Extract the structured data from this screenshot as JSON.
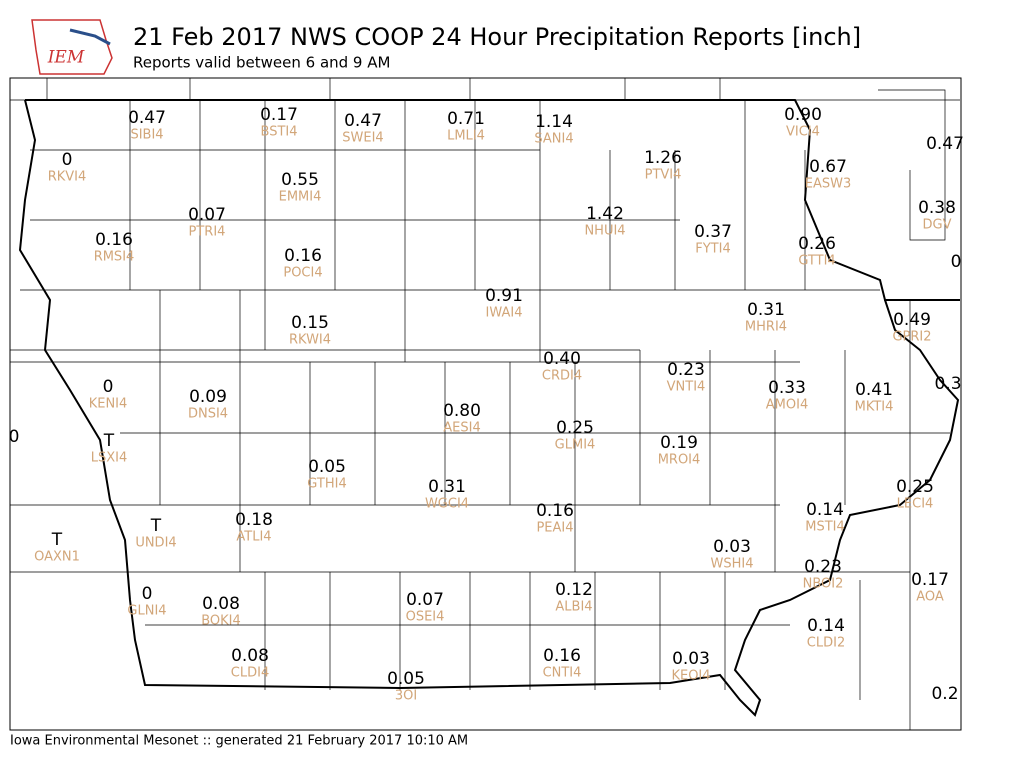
{
  "logo_text": "IEM",
  "title": "21 Feb 2017 NWS COOP 24 Hour Precipitation Reports [inch]",
  "subtitle": "Reports valid between 6 and 9 AM",
  "footer": "Iowa Environmental Mesonet :: generated 21 February 2017 10:10 AM",
  "stations": [
    {
      "value": "0.47",
      "id": "SIBI4"
    },
    {
      "value": "0.17",
      "id": "BSTI4"
    },
    {
      "value": "0.47",
      "id": "SWEI4"
    },
    {
      "value": "0.71",
      "id": "LMLI4"
    },
    {
      "value": "1.14",
      "id": "SANI4"
    },
    {
      "value": "0.90",
      "id": "VICI4"
    },
    {
      "value": "0.47"
    },
    {
      "value": "0",
      "id": "RKVI4"
    },
    {
      "value": "1.26",
      "id": "PTVI4"
    },
    {
      "value": "0.67",
      "id": "EASW3"
    },
    {
      "value": "0.55",
      "id": "EMMI4"
    },
    {
      "value": "0.38",
      "id": "DGV"
    },
    {
      "value": "0.07",
      "id": "PTRI4"
    },
    {
      "value": "1.42",
      "id": "NHUI4"
    },
    {
      "value": "0.16",
      "id": "RMSI4"
    },
    {
      "value": "0.37",
      "id": "FYTI4"
    },
    {
      "value": "0.26",
      "id": "GTTI4"
    },
    {
      "value": "0.16",
      "id": "POCI4"
    },
    {
      "value": "0"
    },
    {
      "value": "0.91",
      "id": "IWAI4"
    },
    {
      "value": "0.31",
      "id": "MHRI4"
    },
    {
      "value": "0.49",
      "id": "GPRI2"
    },
    {
      "value": "0.15",
      "id": "RKWI4"
    },
    {
      "value": "0.40",
      "id": "CRDI4"
    },
    {
      "value": "0.23",
      "id": "VNTI4"
    },
    {
      "value": "0",
      "id": "KENI4"
    },
    {
      "value": "0.33",
      "id": "AMOI4"
    },
    {
      "value": "0.41",
      "id": "MKTI4"
    },
    {
      "value": "0.3"
    },
    {
      "value": "0.09",
      "id": "DNSI4"
    },
    {
      "value": "0.80",
      "id": "AESI4"
    },
    {
      "value": "0.25",
      "id": "GLMI4"
    },
    {
      "value": "0"
    },
    {
      "value": "0.19",
      "id": "MROI4"
    },
    {
      "value": "T",
      "id": "LSXI4"
    },
    {
      "value": "0.05",
      "id": "GTHI4"
    },
    {
      "value": "0.31",
      "id": "WGCI4"
    },
    {
      "value": "0.25",
      "id": "LECI4"
    },
    {
      "value": "0.14",
      "id": "MSTI4"
    },
    {
      "value": "0.16",
      "id": "PEAI4"
    },
    {
      "value": "0.18",
      "id": "ATLI4"
    },
    {
      "value": "T",
      "id": "UNDI4"
    },
    {
      "value": "T",
      "id": "OAXN1"
    },
    {
      "value": "0.03",
      "id": "WSHI4"
    },
    {
      "value": "0.23",
      "id": "NBOI2"
    },
    {
      "value": "0.17",
      "id": "AOA"
    },
    {
      "value": "0",
      "id": "GLNI4"
    },
    {
      "value": "0.12",
      "id": "ALBI4"
    },
    {
      "value": "0.08",
      "id": "BOKI4"
    },
    {
      "value": "0.07",
      "id": "OSEI4"
    },
    {
      "value": "0.14",
      "id": "CLDI2"
    },
    {
      "value": "0.08",
      "id": "CLDI4"
    },
    {
      "value": "0.16",
      "id": "CNTI4"
    },
    {
      "value": "0.03",
      "id": "KEOI4"
    },
    {
      "value": "0.05",
      "id": "3OI"
    },
    {
      "value": "0.2"
    }
  ]
}
